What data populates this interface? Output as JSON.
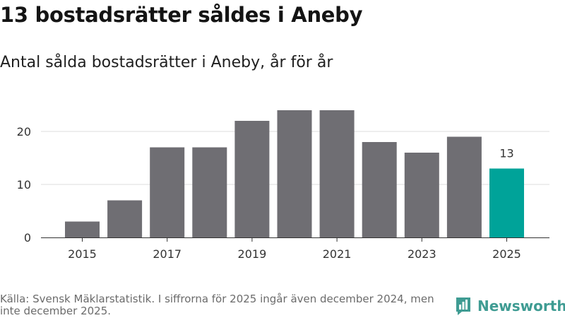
{
  "title": "13 bostadsrätter såldes i Aneby",
  "subtitle": "Antal sålda bostadsrätter i Aneby, år för år",
  "source": "Källa: Svensk Mäklarstatistik. I siffrorna för 2025 ingår även december 2024, men inte december 2025.",
  "brand": {
    "name": "Newsworthy",
    "logo_icon": "bar-chart-logo-icon"
  },
  "colors": {
    "bar": "#6f6e73",
    "highlight": "#00a399",
    "grid": "#dddddd",
    "axis": "#333333",
    "brand": "#3f9c93"
  },
  "chart_data": {
    "type": "bar",
    "title": "Antal sålda bostadsrätter i Aneby, år för år",
    "xlabel": "",
    "ylabel": "",
    "categories": [
      "2015",
      "2016",
      "2017",
      "2018",
      "2019",
      "2020",
      "2021",
      "2022",
      "2023",
      "2024",
      "2025"
    ],
    "values": [
      3,
      7,
      17,
      17,
      22,
      24,
      24,
      18,
      16,
      19,
      13
    ],
    "highlight_index": 10,
    "highlight_label": "13",
    "x_tick_labels": [
      "2015",
      "2017",
      "2019",
      "2021",
      "2023",
      "2025"
    ],
    "y_ticks": [
      0,
      10,
      20
    ],
    "ylim": [
      0,
      24
    ],
    "grid": true
  }
}
